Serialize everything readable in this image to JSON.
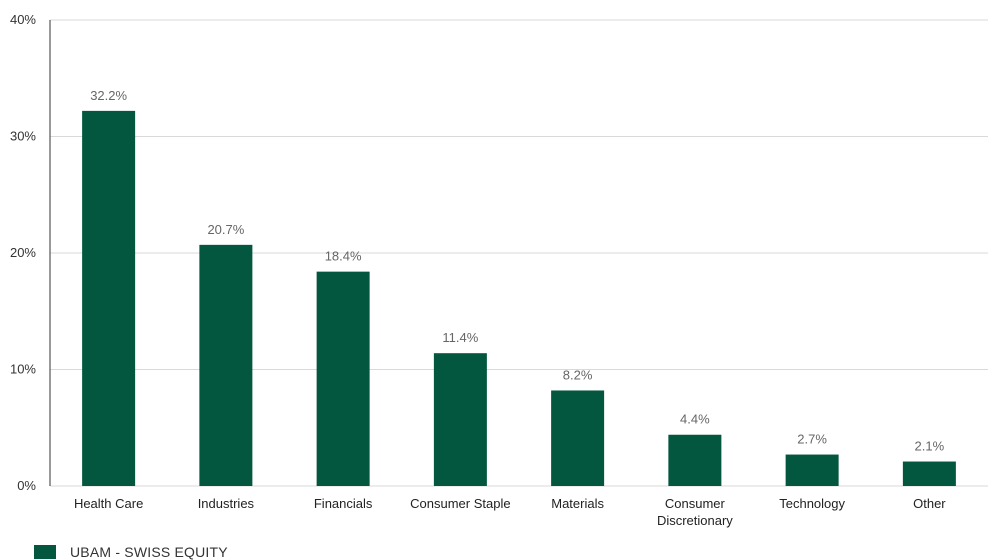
{
  "chart_data": {
    "type": "bar",
    "categories": [
      "Health Care",
      "Industries",
      "Financials",
      "Consumer Staple",
      "Materials",
      "Consumer Discretionary",
      "Technology",
      "Other"
    ],
    "category_lines": [
      [
        "Health Care"
      ],
      [
        "Industries"
      ],
      [
        "Financials"
      ],
      [
        "Consumer Staple"
      ],
      [
        "Materials"
      ],
      [
        "Consumer",
        "Discretionary"
      ],
      [
        "Technology"
      ],
      [
        "Other"
      ]
    ],
    "series": [
      {
        "name": "UBAM - SWISS EQUITY",
        "values": [
          32.2,
          20.7,
          18.4,
          11.4,
          8.2,
          4.4,
          2.7,
          2.1
        ]
      }
    ],
    "data_labels": [
      "32.2%",
      "20.7%",
      "18.4%",
      "11.4%",
      "8.2%",
      "4.4%",
      "2.7%",
      "2.1%"
    ],
    "ylim": [
      0,
      40
    ],
    "yticks": [
      0,
      10,
      20,
      30,
      40
    ],
    "ytick_labels": [
      "0%",
      "10%",
      "20%",
      "30%",
      "40%"
    ],
    "title": "",
    "xlabel": "",
    "ylabel": "",
    "grid": true,
    "legend_position": "bottom-left",
    "colors": {
      "bar": "#03573f",
      "grid": "#d9d9d9",
      "axis": "#333333"
    }
  }
}
